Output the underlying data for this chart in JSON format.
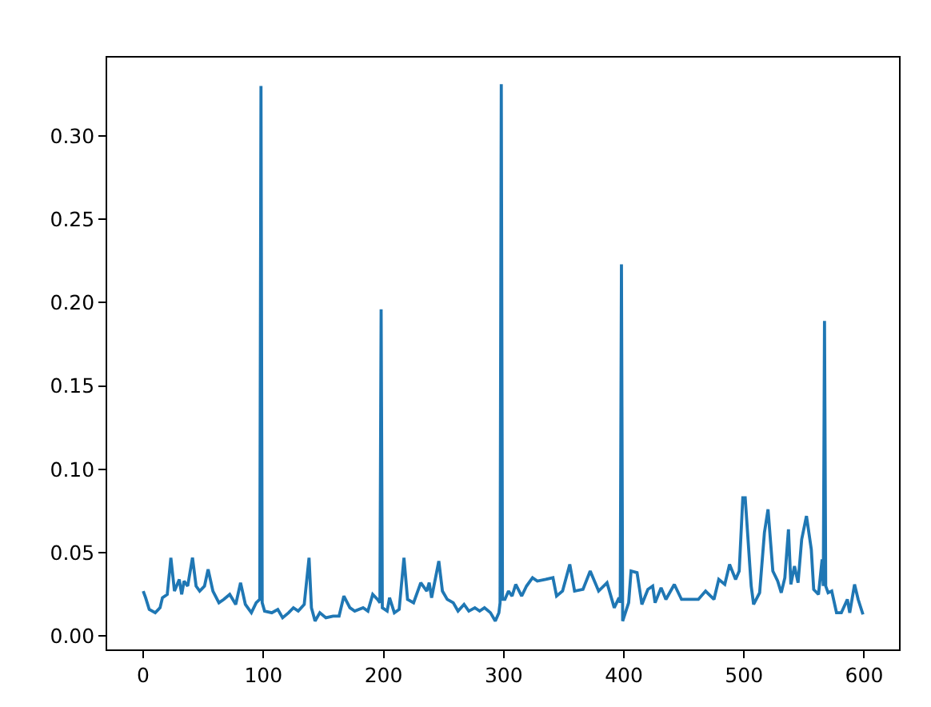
{
  "chart_data": {
    "type": "line",
    "color": "#1f77b4",
    "line_style": "solid",
    "marker": "none",
    "grid": false,
    "x": [
      0,
      2,
      5,
      10,
      14,
      16,
      20,
      23,
      26,
      30,
      32,
      34,
      37,
      41,
      44,
      47,
      51,
      54,
      58,
      63,
      67,
      72,
      77,
      81,
      85,
      90,
      94,
      97,
      98,
      99,
      101,
      107,
      112,
      116,
      121,
      125,
      129,
      134,
      138,
      140,
      143,
      147,
      152,
      158,
      163,
      167,
      172,
      176,
      183,
      187,
      191,
      195,
      197,
      198,
      199,
      203,
      205,
      209,
      213,
      217,
      220,
      225,
      231,
      236,
      238,
      240,
      246,
      249,
      253,
      258,
      262,
      267,
      271,
      276,
      280,
      284,
      289,
      293,
      296,
      297,
      298,
      299,
      301,
      304,
      307,
      310,
      315,
      319,
      324,
      328,
      335,
      341,
      344,
      349,
      355,
      359,
      366,
      372,
      379,
      386,
      392,
      396,
      397,
      398,
      399,
      404,
      406,
      411,
      415,
      420,
      424,
      426,
      431,
      435,
      442,
      448,
      455,
      462,
      468,
      475,
      479,
      484,
      488,
      493,
      496,
      499,
      501,
      506,
      508,
      513,
      517,
      520,
      524,
      528,
      531,
      534,
      537,
      539,
      542,
      545,
      548,
      552,
      556,
      558,
      562,
      565,
      566,
      567,
      568,
      570,
      573,
      577,
      581,
      586,
      588,
      592,
      595,
      599
    ],
    "values": [
      0.027,
      0.023,
      0.016,
      0.014,
      0.017,
      0.023,
      0.025,
      0.047,
      0.027,
      0.034,
      0.025,
      0.033,
      0.03,
      0.047,
      0.03,
      0.027,
      0.03,
      0.04,
      0.027,
      0.02,
      0.022,
      0.025,
      0.019,
      0.032,
      0.019,
      0.014,
      0.02,
      0.022,
      0.33,
      0.02,
      0.015,
      0.014,
      0.016,
      0.011,
      0.014,
      0.017,
      0.015,
      0.019,
      0.047,
      0.017,
      0.009,
      0.014,
      0.011,
      0.012,
      0.012,
      0.024,
      0.017,
      0.015,
      0.017,
      0.015,
      0.025,
      0.022,
      0.02,
      0.196,
      0.017,
      0.015,
      0.023,
      0.014,
      0.016,
      0.047,
      0.022,
      0.02,
      0.032,
      0.027,
      0.032,
      0.023,
      0.045,
      0.027,
      0.022,
      0.02,
      0.015,
      0.019,
      0.015,
      0.017,
      0.015,
      0.017,
      0.014,
      0.009,
      0.014,
      0.02,
      0.331,
      0.022,
      0.022,
      0.027,
      0.024,
      0.031,
      0.024,
      0.03,
      0.035,
      0.033,
      0.034,
      0.035,
      0.024,
      0.027,
      0.043,
      0.027,
      0.028,
      0.039,
      0.027,
      0.032,
      0.017,
      0.023,
      0.02,
      0.223,
      0.009,
      0.02,
      0.039,
      0.038,
      0.019,
      0.028,
      0.03,
      0.02,
      0.029,
      0.022,
      0.031,
      0.022,
      0.022,
      0.022,
      0.027,
      0.022,
      0.034,
      0.031,
      0.043,
      0.034,
      0.039,
      0.083,
      0.083,
      0.03,
      0.019,
      0.026,
      0.062,
      0.076,
      0.039,
      0.033,
      0.026,
      0.035,
      0.064,
      0.031,
      0.042,
      0.032,
      0.058,
      0.072,
      0.052,
      0.028,
      0.025,
      0.046,
      0.03,
      0.189,
      0.03,
      0.026,
      0.027,
      0.014,
      0.014,
      0.022,
      0.014,
      0.031,
      0.022,
      0.013
    ],
    "xlim": [
      -30,
      629
    ],
    "ylim": [
      -0.008,
      0.347
    ],
    "xticks": [
      0,
      100,
      200,
      300,
      400,
      500,
      600
    ],
    "yticks": [
      {
        "value": 0,
        "label": "0.00"
      },
      {
        "value": 0.05,
        "label": "0.05"
      },
      {
        "value": 0.1,
        "label": "0.10"
      },
      {
        "value": 0.15,
        "label": "0.15"
      },
      {
        "value": 0.2,
        "label": "0.20"
      },
      {
        "value": 0.25,
        "label": "0.25"
      },
      {
        "value": 0.3,
        "label": "0.30"
      }
    ]
  }
}
